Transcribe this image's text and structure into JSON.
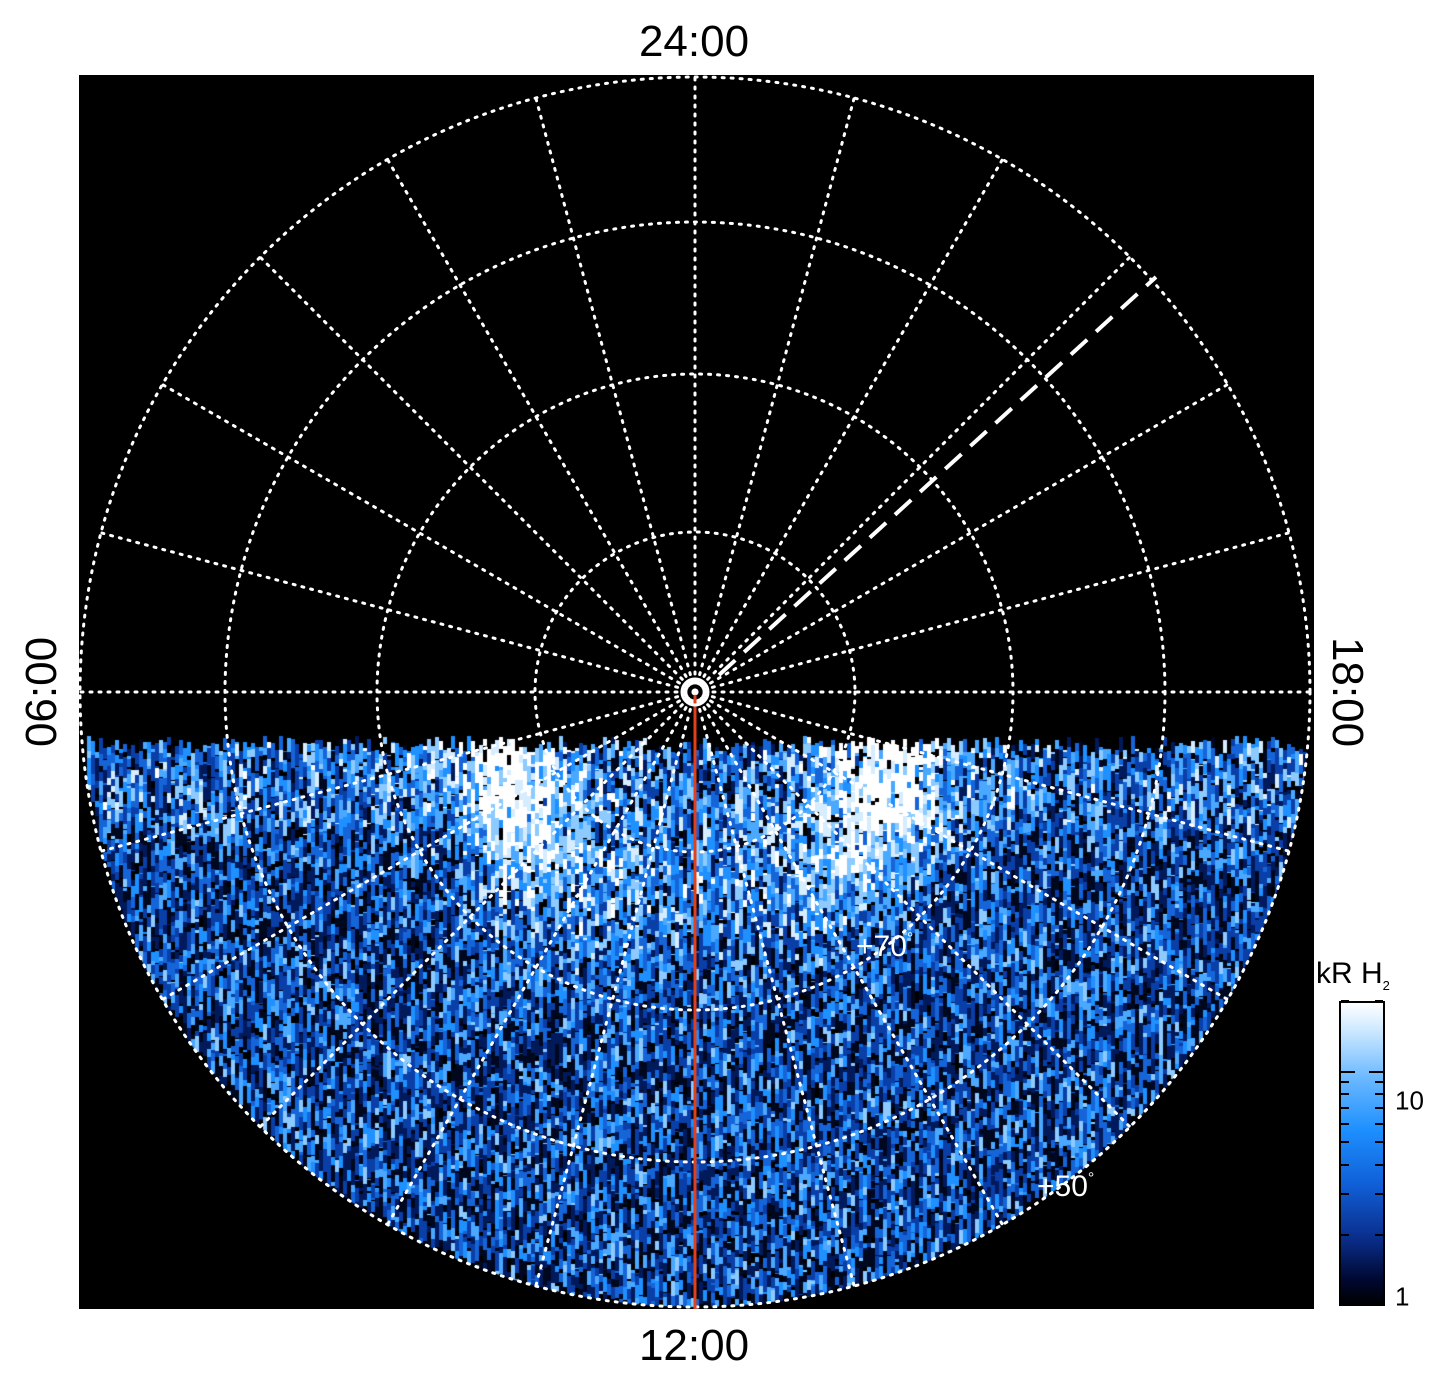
{
  "local_time_labels": {
    "top": "24:00",
    "bottom": "12:00",
    "left": "06:00",
    "right": "18:00"
  },
  "latitude_labels": {
    "inner": "+70",
    "outer": "+50",
    "degree_symbol": "°"
  },
  "colorbar": {
    "title_main": "kR H",
    "title_subscript": "2",
    "tick_10": "10",
    "tick_1": "1",
    "scale": "log",
    "range": [
      1,
      20
    ]
  },
  "colors": {
    "background": "#000000",
    "grid": "#ffffff",
    "meridian_line": "#e0401a",
    "emission_low": "#000820",
    "emission_mid": "#1e90ff",
    "emission_high": "#ffffff"
  },
  "icons": {
    "sun_symbol": "sun-icon"
  }
}
